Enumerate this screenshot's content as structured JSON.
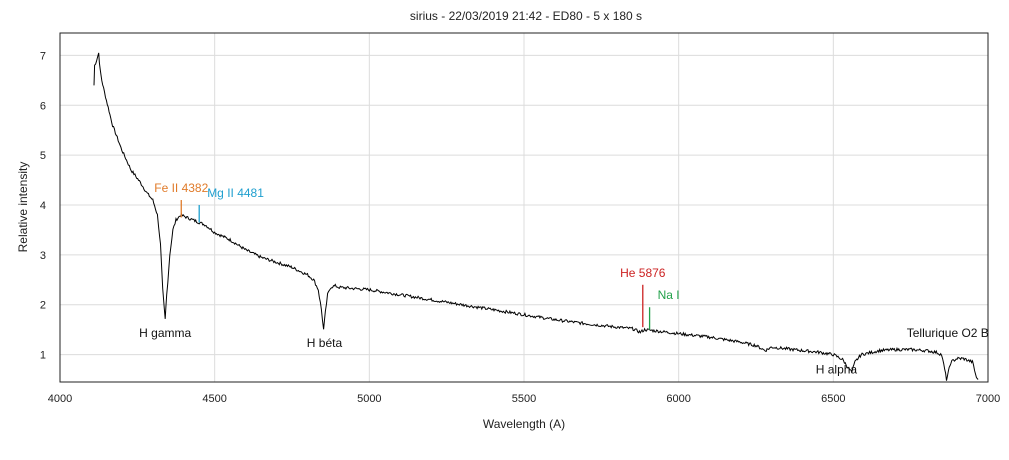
{
  "chart_data": {
    "type": "line",
    "title": "sirius - 22/03/2019 21:42 - ED80 - 5 x 180 s",
    "xlabel": "Wavelength (A)",
    "ylabel": "Relative intensity",
    "xlim": [
      4000,
      7000
    ],
    "ylim": [
      0.45,
      7.45
    ],
    "xticks": [
      4000,
      4500,
      5000,
      5500,
      6000,
      6500,
      7000
    ],
    "yticks": [
      1,
      2,
      3,
      4,
      5,
      6,
      7
    ],
    "xtick_labels": [
      "4000",
      "4500",
      "5000",
      "5500",
      "6000",
      "6500",
      "7000"
    ],
    "ytick_labels": [
      "1",
      "2",
      "3",
      "4",
      "5",
      "6",
      "7"
    ],
    "grid": true,
    "series": [
      {
        "color": "#000000",
        "x": [
          4110,
          4112,
          4118,
          4125,
          4130,
          4135,
          4150,
          4170,
          4200,
          4230,
          4260,
          4280,
          4300,
          4315,
          4325,
          4332,
          4340,
          4345,
          4355,
          4365,
          4375,
          4390,
          4410,
          4430,
          4450,
          4470,
          4500,
          4550,
          4600,
          4650,
          4700,
          4750,
          4800,
          4820,
          4835,
          4845,
          4852,
          4858,
          4865,
          4875,
          4890,
          4900,
          5000,
          5100,
          5200,
          5300,
          5400,
          5500,
          5600,
          5700,
          5800,
          5850,
          5876,
          5890,
          5920,
          6000,
          6100,
          6200,
          6250,
          6280,
          6300,
          6400,
          6450,
          6500,
          6530,
          6550,
          6560,
          6570,
          6590,
          6650,
          6700,
          6750,
          6800,
          6830,
          6850,
          6860,
          6866,
          6872,
          6880,
          6900,
          6920,
          6950,
          6960,
          6965,
          6968
        ],
        "y": [
          6.4,
          6.8,
          6.9,
          7.05,
          6.7,
          6.5,
          6.1,
          5.6,
          5.1,
          4.7,
          4.45,
          4.25,
          4.1,
          3.8,
          3.2,
          2.3,
          1.7,
          2.2,
          3.0,
          3.5,
          3.7,
          3.8,
          3.75,
          3.7,
          3.65,
          3.6,
          3.45,
          3.3,
          3.1,
          2.95,
          2.85,
          2.75,
          2.6,
          2.5,
          2.3,
          1.9,
          1.5,
          1.85,
          2.2,
          2.35,
          2.38,
          2.35,
          2.3,
          2.2,
          2.1,
          2.0,
          1.9,
          1.8,
          1.7,
          1.62,
          1.55,
          1.52,
          1.45,
          1.5,
          1.48,
          1.42,
          1.35,
          1.25,
          1.18,
          1.08,
          1.15,
          1.08,
          1.05,
          1.0,
          0.9,
          0.72,
          0.65,
          0.85,
          1.0,
          1.08,
          1.1,
          1.1,
          1.08,
          1.05,
          1.0,
          0.7,
          0.5,
          0.65,
          0.85,
          0.92,
          0.92,
          0.85,
          0.6,
          0.5,
          0.5
        ]
      }
    ],
    "annotations": [
      {
        "text": "Fe II 4382",
        "x": 4392,
        "y_top": 4.1,
        "y_bottom": 3.75,
        "color": "#e07b2a"
      },
      {
        "text": "Mg II 4481",
        "x": 4450,
        "y_top": 4.0,
        "y_bottom": 3.65,
        "color": "#1f9fcf"
      },
      {
        "text": "He 5876",
        "x": 5884,
        "y_top": 2.4,
        "y_bottom": 1.55,
        "color": "#cc2222"
      },
      {
        "text": "Na I",
        "x": 5906,
        "y_top": 1.95,
        "y_bottom": 1.5,
        "color": "#22a14a"
      }
    ],
    "labels": [
      {
        "text": "H gamma",
        "x": 4340,
        "y": 1.35
      },
      {
        "text": "H béta",
        "x": 4855,
        "y": 1.15
      },
      {
        "text": "H alpha",
        "x": 6510,
        "y": 0.62
      },
      {
        "text": "Tellurique O2 B",
        "x": 6870,
        "y": 1.35
      }
    ]
  }
}
